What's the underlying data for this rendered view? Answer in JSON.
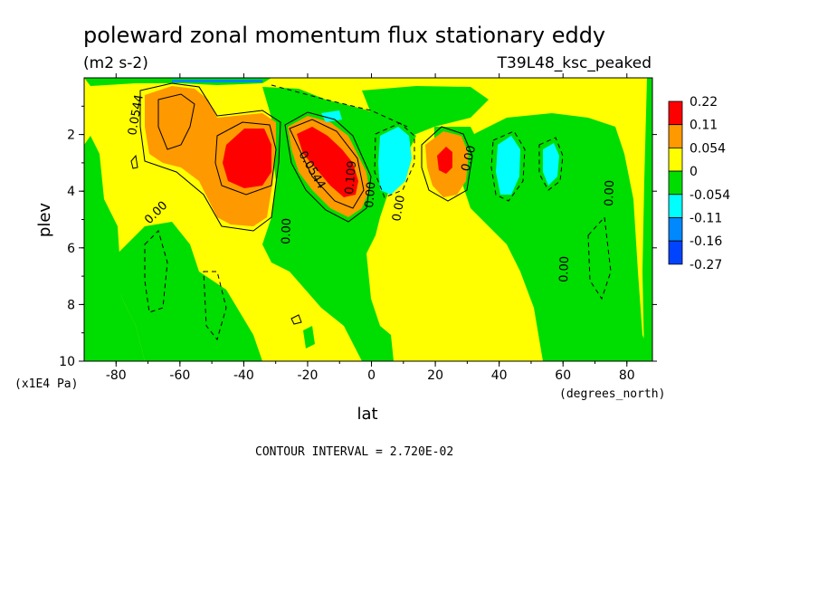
{
  "chart_data": {
    "type": "heatmap",
    "title": "poleward zonal momentum flux stationary eddy",
    "units": "(m2 s-2)",
    "run_label": "T39L48_ksc_peaked",
    "xlabel": "lat",
    "x_units": "(degrees_north)",
    "ylabel": "plev",
    "y_units": "(x1E4 Pa)",
    "xlim": [
      -90,
      88
    ],
    "ylim": [
      10,
      0
    ],
    "x_ticks": [
      "-80",
      "-60",
      "-40",
      "-20",
      "0",
      "20",
      "40",
      "60",
      "80"
    ],
    "y_ticks": [
      "2",
      "4",
      "6",
      "8",
      "10"
    ],
    "contour_interval_text": "CONTOUR INTERVAL = 2.720E-02",
    "colorbar": {
      "levels": [
        "0.22",
        "0.11",
        "0.054",
        "0",
        "-0.054",
        "-0.11",
        "-0.16",
        "-0.27"
      ],
      "colors": [
        "#ff0000",
        "#ff9900",
        "#ffff00",
        "#00dd00",
        "#00ffff",
        "#0088ff",
        "#0044ff"
      ]
    },
    "contour_labels": [
      "0.0544",
      "0.00",
      "0.00",
      "0.0544",
      "0.109",
      "0.00",
      "0.00",
      "0.00",
      "0.00",
      "0.00",
      "0.00"
    ],
    "features": [
      {
        "kind": "max",
        "lat": -37,
        "plev": 3.0,
        "value": 0.16
      },
      {
        "kind": "max",
        "lat": -13,
        "plev": 3.0,
        "value": 0.18
      },
      {
        "kind": "max",
        "lat": 25,
        "plev": 3.0,
        "value": 0.13
      },
      {
        "kind": "min",
        "lat": 8,
        "plev": 3.0,
        "value": -0.07
      },
      {
        "kind": "min",
        "lat": 45,
        "plev": 3.0,
        "value": -0.07
      },
      {
        "kind": "min",
        "lat": 57,
        "plev": 3.2,
        "value": -0.06
      }
    ]
  }
}
